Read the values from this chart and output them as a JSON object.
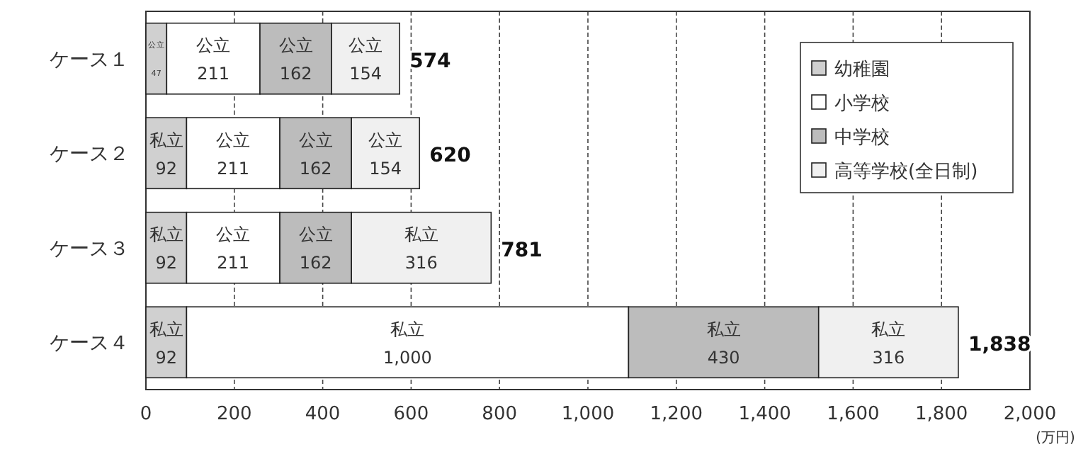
{
  "chart_data": {
    "type": "bar",
    "orientation": "horizontal",
    "stacked": true,
    "categories": [
      "ケース１",
      "ケース２",
      "ケース３",
      "ケース４"
    ],
    "series": [
      {
        "name": "幼稚園",
        "color": "#d0d0d0",
        "values": [
          47,
          92,
          92,
          92
        ],
        "value_labels": [
          "公立\n47",
          "私立\n92",
          "私立\n92",
          "私立\n92"
        ]
      },
      {
        "name": "小学校",
        "color": "#ffffff",
        "values": [
          211,
          211,
          211,
          1000
        ],
        "value_labels": [
          "公立\n211",
          "公立\n211",
          "公立\n211",
          "私立\n1,000"
        ]
      },
      {
        "name": "中学校",
        "color": "#bcbcbc",
        "values": [
          162,
          162,
          162,
          430
        ],
        "value_labels": [
          "公立\n162",
          "公立\n162",
          "公立\n162",
          "私立\n430"
        ]
      },
      {
        "name": "高等学校(全日制)",
        "color": "#f0f0f0",
        "values": [
          154,
          154,
          316,
          316
        ],
        "value_labels": [
          "公立\n154",
          "公立\n154",
          "私立\n316",
          "私立\n316"
        ]
      }
    ],
    "totals": [
      "574",
      "620",
      "781",
      "1,838"
    ],
    "xlim": [
      0,
      2000
    ],
    "xticks": [
      0,
      200,
      400,
      600,
      800,
      {
        "value": 1000,
        "label": "1,000"
      },
      {
        "value": 1200,
        "label": "1,200"
      },
      {
        "value": 1400,
        "label": "1,400"
      },
      {
        "value": 1600,
        "label": "1,600"
      },
      {
        "value": 1800,
        "label": "1,800"
      },
      {
        "value": 2000,
        "label": "2,000"
      }
    ],
    "xlabel": "(万円)",
    "grid": "x",
    "legend": "top right"
  }
}
